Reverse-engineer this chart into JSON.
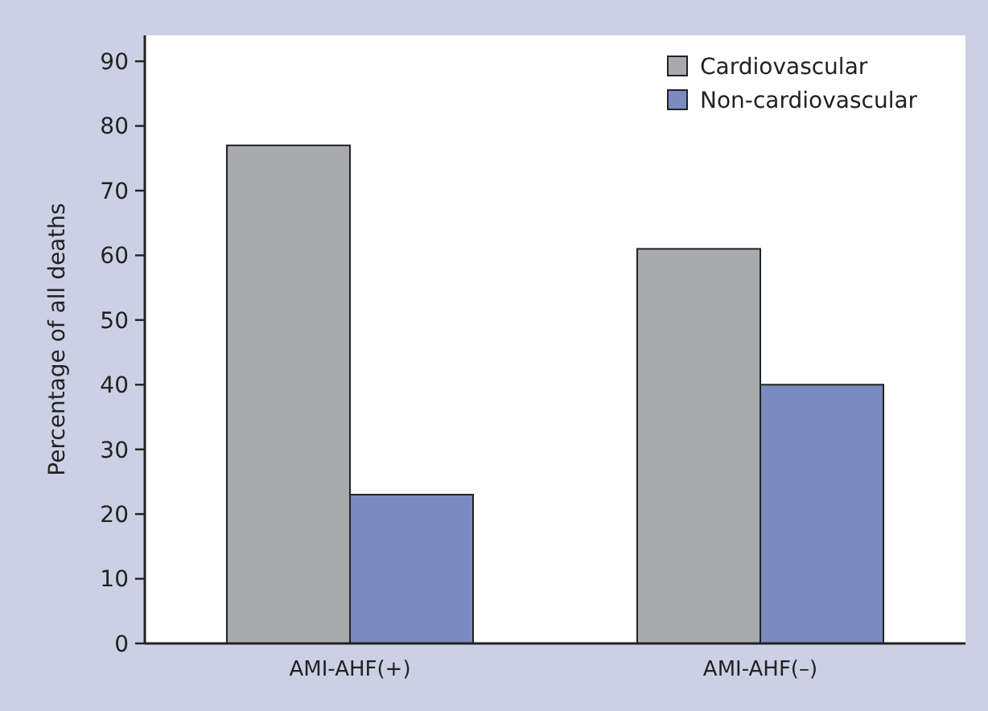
{
  "chart_data": {
    "type": "bar",
    "ylabel": "Percentage of all deaths",
    "categories": [
      "AMI-AHF(+)",
      "AMI-AHF(–)"
    ],
    "series": [
      {
        "name": "Cardiovascular",
        "color": "#a9aaad",
        "values": [
          77,
          61
        ]
      },
      {
        "name": "Non-cardiovascular",
        "color": "#7b8bbf",
        "values": [
          23,
          40
        ]
      }
    ],
    "ylim": [
      0,
      94
    ],
    "yticks": [
      0,
      10,
      20,
      30,
      40,
      50,
      60,
      70,
      80,
      90
    ],
    "grid": false,
    "legend": "top right"
  }
}
